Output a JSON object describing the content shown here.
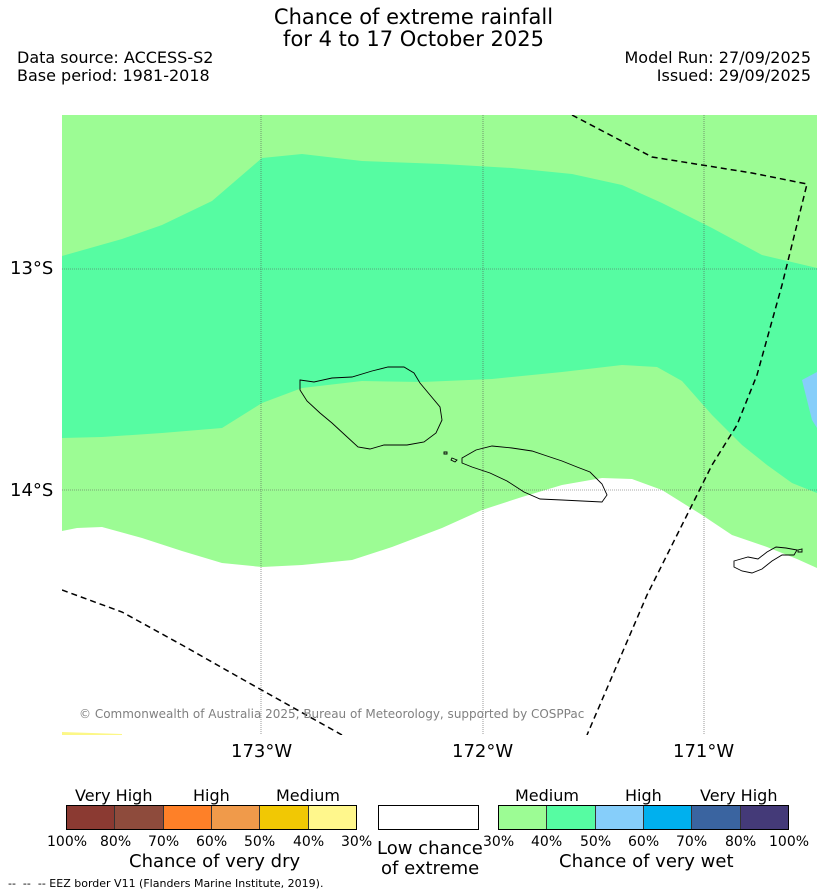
{
  "title": {
    "line1": "Chance of extreme rainfall",
    "line2": "for 4 to 17 October 2025"
  },
  "header": {
    "data_source": "Data source: ACCESS-S2",
    "base_period": "Base period: 1981-2018",
    "model_run": "Model Run: 27/09/2025",
    "issued": "Issued: 29/09/2025"
  },
  "map": {
    "lat_labels": [
      "13°S",
      "14°S"
    ],
    "lon_labels": [
      "173°W",
      "172°W",
      "171°W"
    ],
    "copyright": "© Commonwealth of Australia 2025, Bureau of Meteorology, supported by COSPPac",
    "colors": {
      "medium_wet": "#9cfc94",
      "high_wet_40_50": "#56fca2",
      "wet_50_60": "#86cefa",
      "dry_30_40": "#fcf787"
    }
  },
  "legend": {
    "dry": {
      "categories": [
        "Very High",
        "High",
        "Medium"
      ],
      "ticks": [
        "100%",
        "80%",
        "70%",
        "60%",
        "50%",
        "40%",
        "30%"
      ],
      "colors": [
        "#8b3a32",
        "#8e4b3c",
        "#fe8028",
        "#f09a4a",
        "#f1c804",
        "#fff78c"
      ],
      "caption": "Chance of very dry"
    },
    "low": {
      "caption_line1": "Low chance",
      "caption_line2": "of extreme"
    },
    "wet": {
      "categories": [
        "Medium",
        "High",
        "Very High"
      ],
      "ticks": [
        "30%",
        "40%",
        "50%",
        "60%",
        "70%",
        "80%",
        "100%"
      ],
      "colors": [
        "#9cfc94",
        "#56fca2",
        "#86cefa",
        "#00b0ee",
        "#3a64a0",
        "#443a78"
      ],
      "caption": "Chance of very wet"
    }
  },
  "footnote": "--  --  -- EEZ border V11 (Flanders Marine Institute, 2019)."
}
